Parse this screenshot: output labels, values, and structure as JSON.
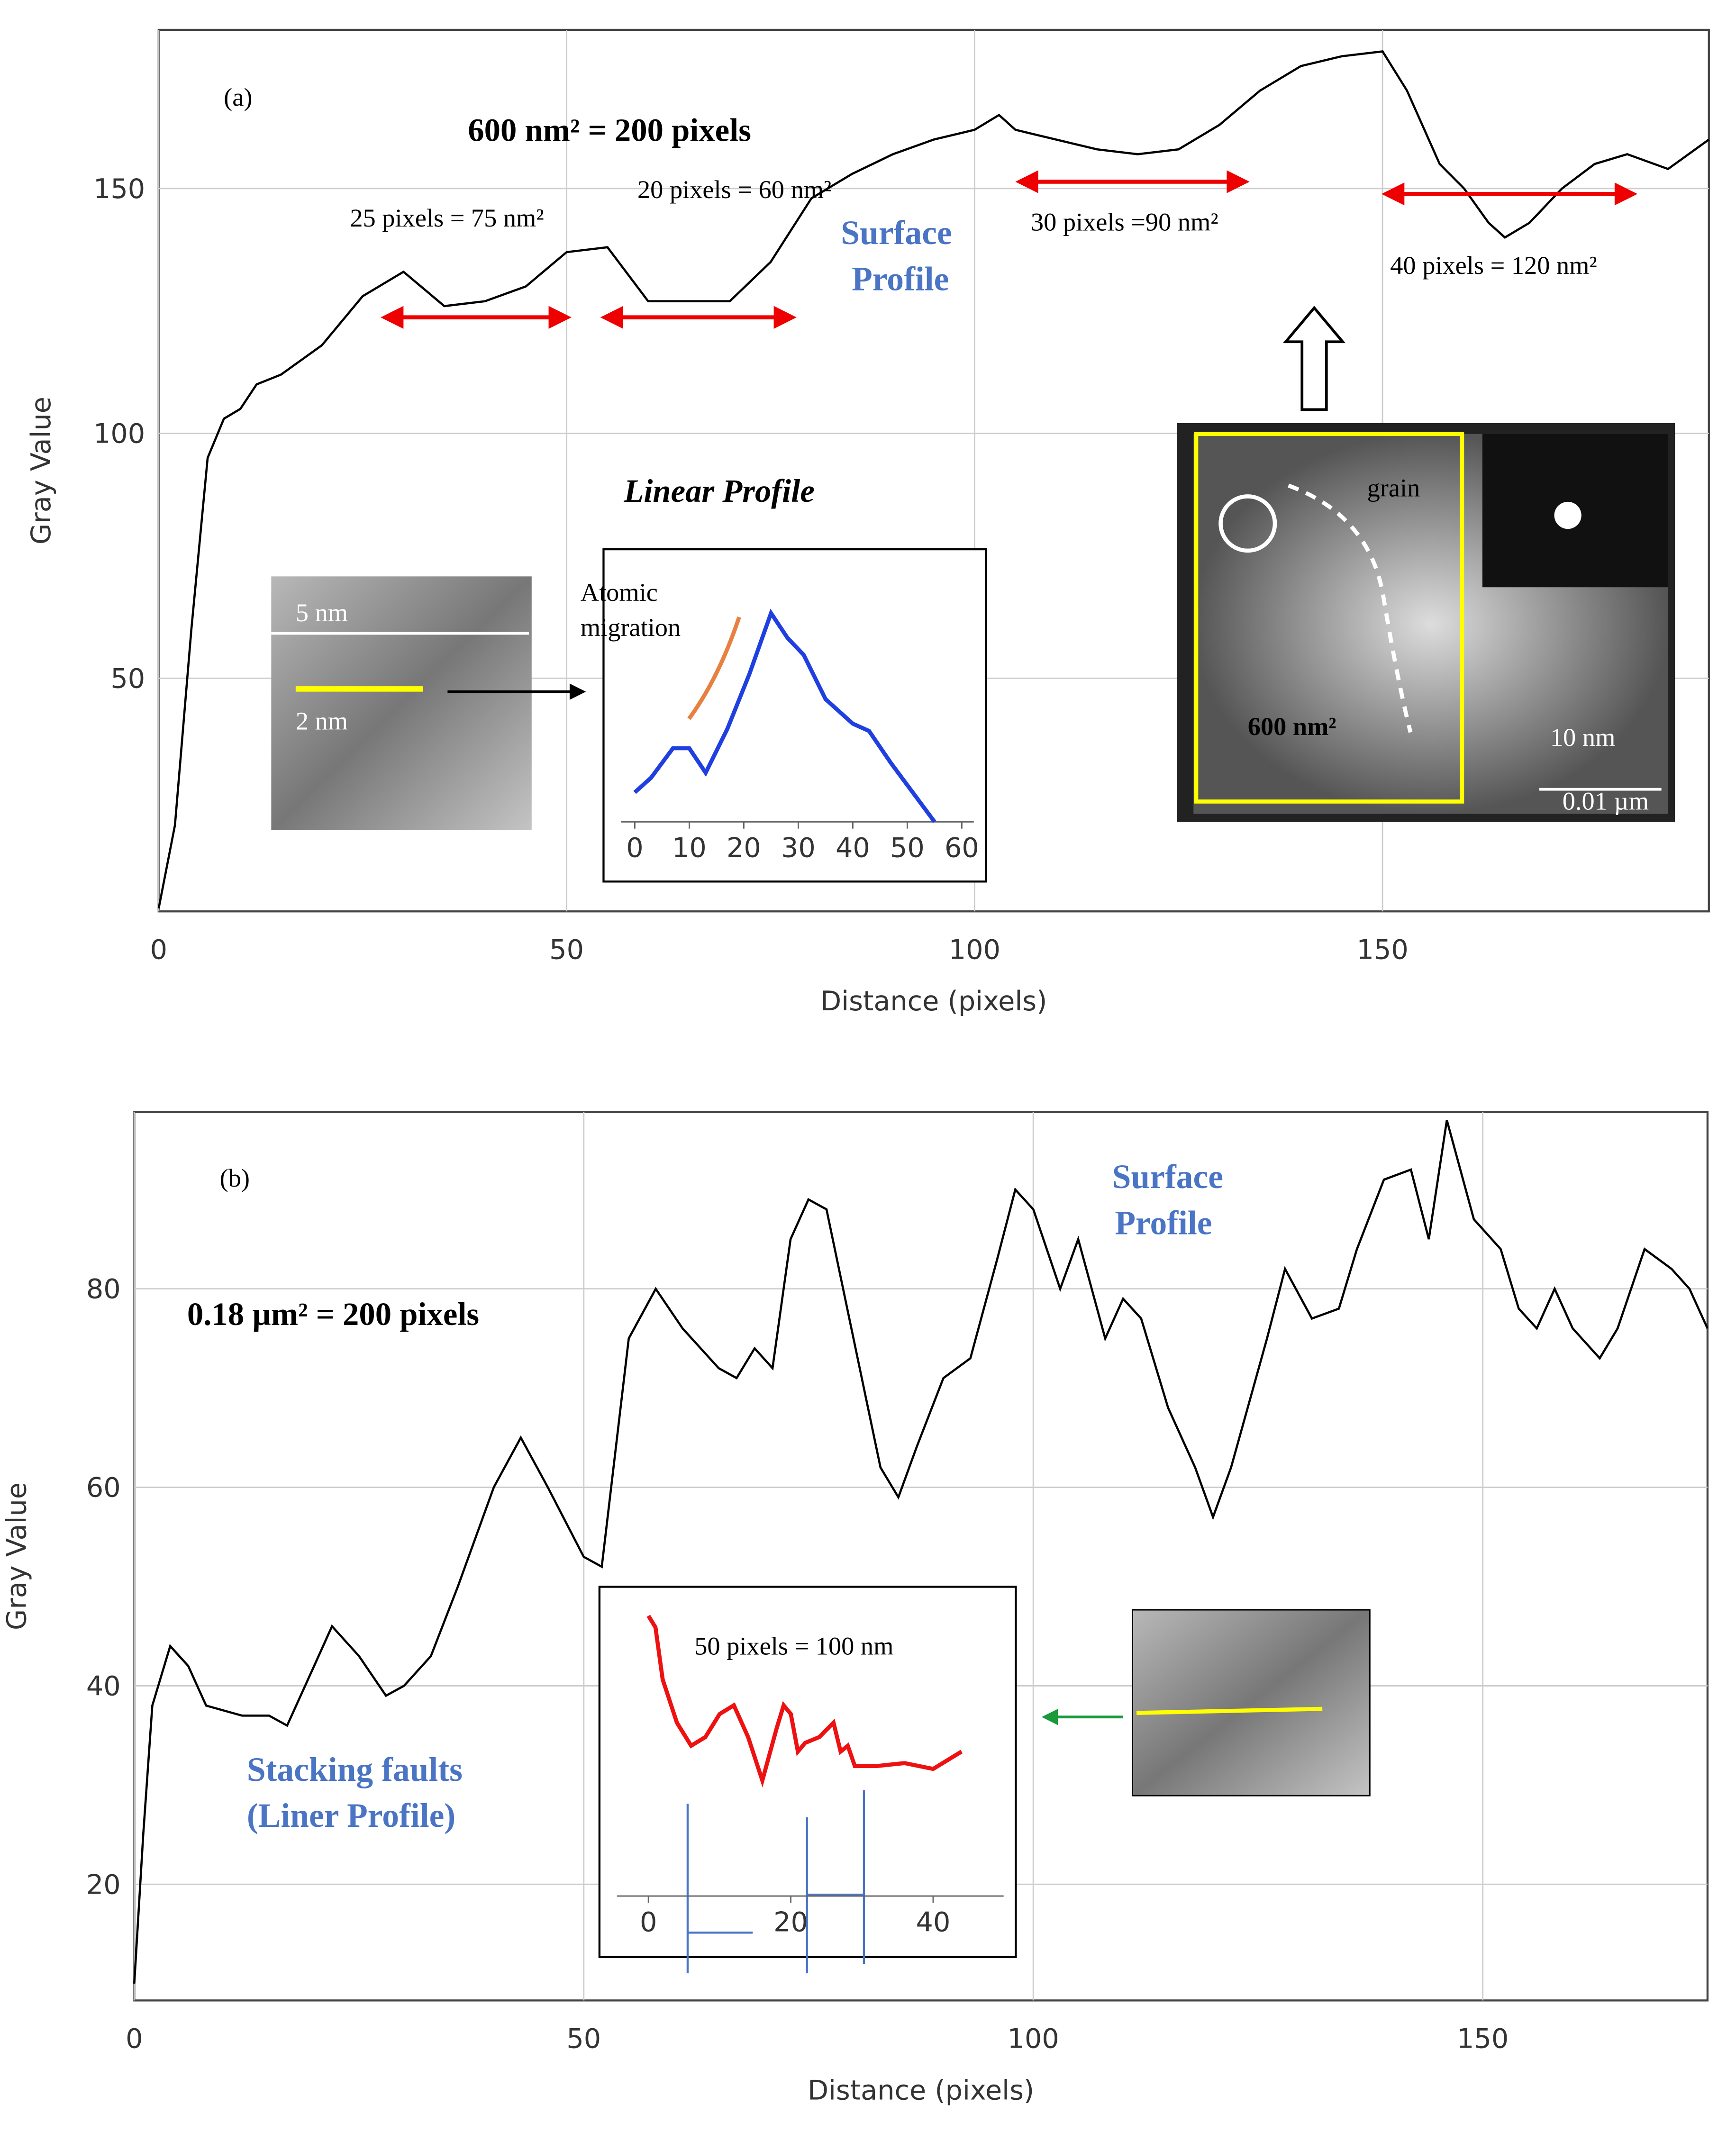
{
  "chart_data": [
    {
      "type": "line",
      "x_label": "Distance (pixels)",
      "y_label": "Gray Value",
      "xlim": [
        0,
        190
      ],
      "ylim": [
        2.4,
        182.4
      ],
      "xticks": [
        0,
        50,
        100,
        150
      ],
      "yticks": [
        50,
        100,
        150
      ],
      "grid": true,
      "series": [
        {
          "name": "Surface Profile",
          "color": "#000000",
          "x": [
            0,
            2,
            4,
            6,
            8,
            10,
            12,
            15,
            20,
            25,
            30,
            35,
            40,
            45,
            50,
            55,
            60,
            65,
            70,
            75,
            80,
            85,
            90,
            95,
            100,
            103,
            105,
            110,
            115,
            120,
            125,
            130,
            135,
            140,
            145,
            150,
            153,
            157,
            160,
            163,
            165,
            168,
            172,
            176,
            180,
            185,
            190
          ],
          "values": [
            3,
            20,
            60,
            95,
            103,
            105,
            110,
            112,
            118,
            128,
            133,
            126,
            127,
            130,
            137,
            138,
            127,
            127,
            127,
            135,
            148,
            153,
            157,
            160,
            162,
            165,
            162,
            160,
            158,
            157,
            158,
            163,
            170,
            175,
            177,
            178,
            170,
            155,
            150,
            143,
            140,
            143,
            150,
            155,
            157,
            154,
            160
          ]
        }
      ],
      "annotations": [
        "(a)",
        "600 nm² = 200 pixels",
        "25 pixels = 75 nm²",
        "20 pixels = 60 nm²",
        "30 pixels =90 nm²",
        "40 pixels = 120 nm²",
        "Surface",
        "Profile",
        "Linear Profile",
        "Atomic",
        "migration",
        "5 nm",
        "2 nm",
        "grain",
        "600 nm²",
        "10 nm",
        "0.01 µm"
      ],
      "inset": {
        "type": "line",
        "xlim": [
          -2.5,
          62.2
        ],
        "ylim": [
          0,
          100
        ],
        "xticks": [
          0,
          10,
          20,
          30,
          40,
          50,
          60
        ],
        "series": [
          {
            "color": "#1f3fe0",
            "x": [
              0,
              3,
              7,
              10,
              13,
              17,
              21,
              25,
              28,
              31,
              35,
              40,
              43,
              47,
              51,
              55
            ],
            "values": [
              12,
              18,
              30,
              30,
              20,
              38,
              60,
              85,
              75,
              68,
              50,
              40,
              37,
              24,
              12,
              0
            ]
          }
        ]
      }
    },
    {
      "type": "line",
      "x_label": "Distance (pixels)",
      "y_label": "Gray Value",
      "xlim": [
        0,
        175
      ],
      "ylim": [
        8.3,
        97.8
      ],
      "xticks": [
        0,
        50,
        100,
        150
      ],
      "yticks": [
        20,
        40,
        60,
        80
      ],
      "grid": true,
      "series": [
        {
          "name": "Surface Profile",
          "color": "#000000",
          "x": [
            0,
            1,
            2,
            4,
            6,
            8,
            12,
            15,
            17,
            20,
            22,
            25,
            28,
            30,
            33,
            36,
            40,
            43,
            46,
            50,
            52,
            55,
            58,
            61,
            65,
            67,
            69,
            71,
            73,
            75,
            77,
            80,
            83,
            85,
            87,
            90,
            93,
            96,
            98,
            100,
            103,
            105,
            108,
            110,
            112,
            115,
            118,
            120,
            122,
            126,
            128,
            131,
            134,
            136,
            139,
            142,
            144,
            146,
            149,
            152,
            154,
            156,
            158,
            160,
            163,
            165,
            168,
            171,
            173,
            175
          ],
          "values": [
            10,
            25,
            38,
            44,
            42,
            38,
            37,
            37,
            36,
            42,
            46,
            43,
            39,
            40,
            43,
            50,
            60,
            65,
            60,
            53,
            52,
            75,
            80,
            76,
            72,
            71,
            74,
            72,
            85,
            89,
            88,
            75,
            62,
            59,
            64,
            71,
            73,
            83,
            90,
            88,
            80,
            85,
            75,
            79,
            77,
            68,
            62,
            57,
            62,
            75,
            82,
            77,
            78,
            84,
            91,
            92,
            85,
            97,
            87,
            84,
            78,
            76,
            80,
            76,
            73,
            76,
            84,
            82,
            80,
            76
          ]
        }
      ],
      "annotations": [
        "(b)",
        "0.18 µm² = 200 pixels",
        "Surface",
        "Profile",
        "Stacking faults",
        "(Liner Profile)",
        "50 pixels = 100 nm"
      ],
      "inset": {
        "type": "line",
        "xlim": [
          -4.4,
          49.9
        ],
        "ylim": [
          0,
          100
        ],
        "xticks": [
          0,
          20,
          40
        ],
        "series": [
          {
            "color": "#ee1111",
            "x": [
              0,
              1,
              2,
              4,
              6,
              8,
              10,
              12,
              14,
              16,
              18,
              19,
              20,
              21,
              22,
              24,
              26,
              27,
              28,
              29,
              32,
              36,
              40,
              42,
              44
            ],
            "values": [
              97,
              93,
              75,
              60,
              52,
              55,
              63,
              66,
              55,
              40,
              58,
              66,
              63,
              50,
              53,
              55,
              60,
              50,
              52,
              45,
              45,
              46,
              44,
              47,
              50
            ]
          }
        ]
      }
    }
  ]
}
